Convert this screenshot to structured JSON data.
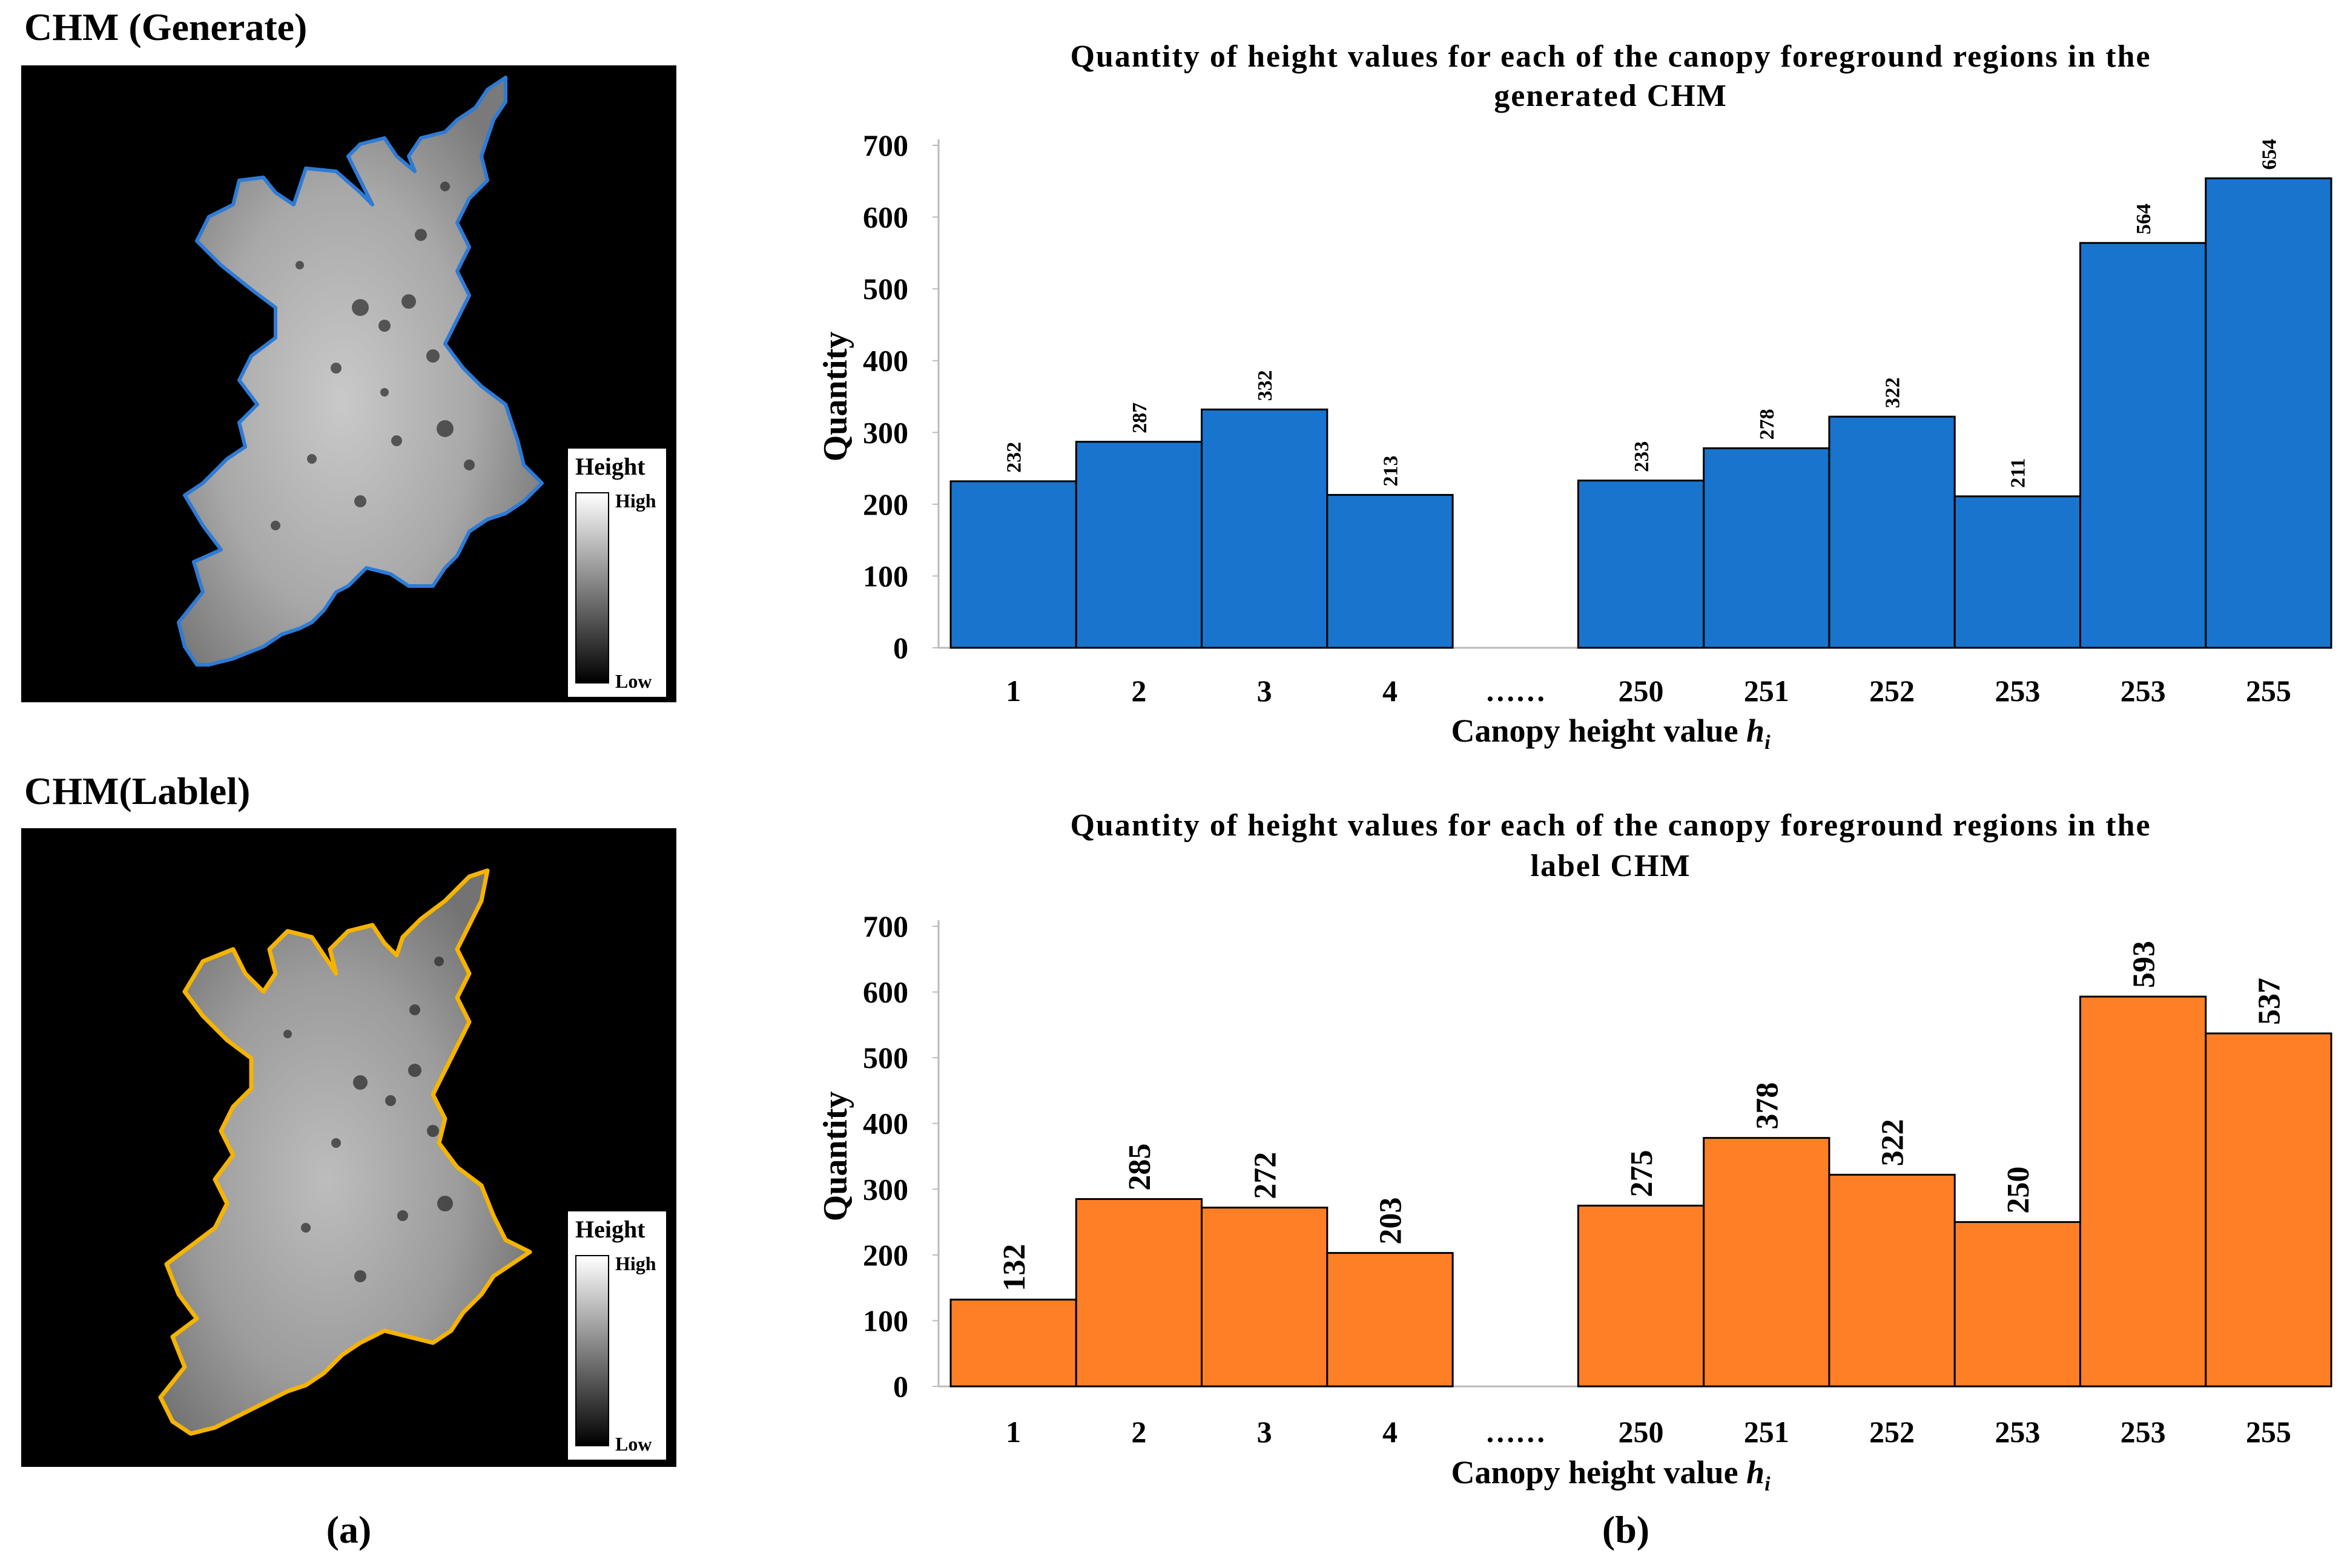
{
  "panel_a": {
    "top_title": "CHM (Generate)",
    "bottom_title": "CHM(Lablel)",
    "legend_title": "Height",
    "legend_high": "High",
    "legend_low": "Low",
    "caption": "(a)"
  },
  "panel_b": {
    "caption": "(b)"
  },
  "colors": {
    "generated": "#1874CD",
    "label": "#FF7F27",
    "generated_outline": "#2E7BD6",
    "label_outline": "#F5B400"
  },
  "chart_data": [
    {
      "type": "bar",
      "title": "Quantity of height values for each of the canopy foreground regions in the generated CHM",
      "title_lines": [
        "Quantity of height values for each of the canopy foreground regions in the",
        "generated CHM"
      ],
      "xlabel": "Canopy height value",
      "xlabel_symbol": "h",
      "xlabel_sub": "i",
      "ylabel": "Quantity",
      "ylim": [
        0,
        700
      ],
      "yticks": [
        0,
        100,
        200,
        300,
        400,
        500,
        600,
        700
      ],
      "categories": [
        "1",
        "2",
        "3",
        "4",
        "……",
        "250",
        "251",
        "252",
        "253",
        "253",
        "255"
      ],
      "values": [
        232,
        287,
        332,
        213,
        null,
        233,
        278,
        322,
        211,
        564,
        654
      ],
      "data_labels": [
        "232",
        "287",
        "332",
        "213",
        "",
        "233",
        "278",
        "322",
        "211",
        "564",
        "654"
      ],
      "color": "#1874CD"
    },
    {
      "type": "bar",
      "title": "Quantity of height values for each of the canopy foreground regions in the label CHM",
      "title_lines": [
        "Quantity of height values for each of the canopy foreground regions in the",
        "label CHM"
      ],
      "xlabel": "Canopy height value",
      "xlabel_symbol": "h",
      "xlabel_sub": "i",
      "ylabel": "Quantity",
      "ylim": [
        0,
        700
      ],
      "yticks": [
        0,
        100,
        200,
        300,
        400,
        500,
        600,
        700
      ],
      "categories": [
        "1",
        "2",
        "3",
        "4",
        "……",
        "250",
        "251",
        "252",
        "253",
        "253",
        "255"
      ],
      "values": [
        132,
        285,
        272,
        203,
        null,
        275,
        378,
        322,
        250,
        593,
        537
      ],
      "data_labels": [
        "132",
        "285",
        "272",
        "203",
        "",
        "275",
        "378",
        "322",
        "250",
        "593",
        "537"
      ],
      "color": "#FF7F27"
    }
  ]
}
